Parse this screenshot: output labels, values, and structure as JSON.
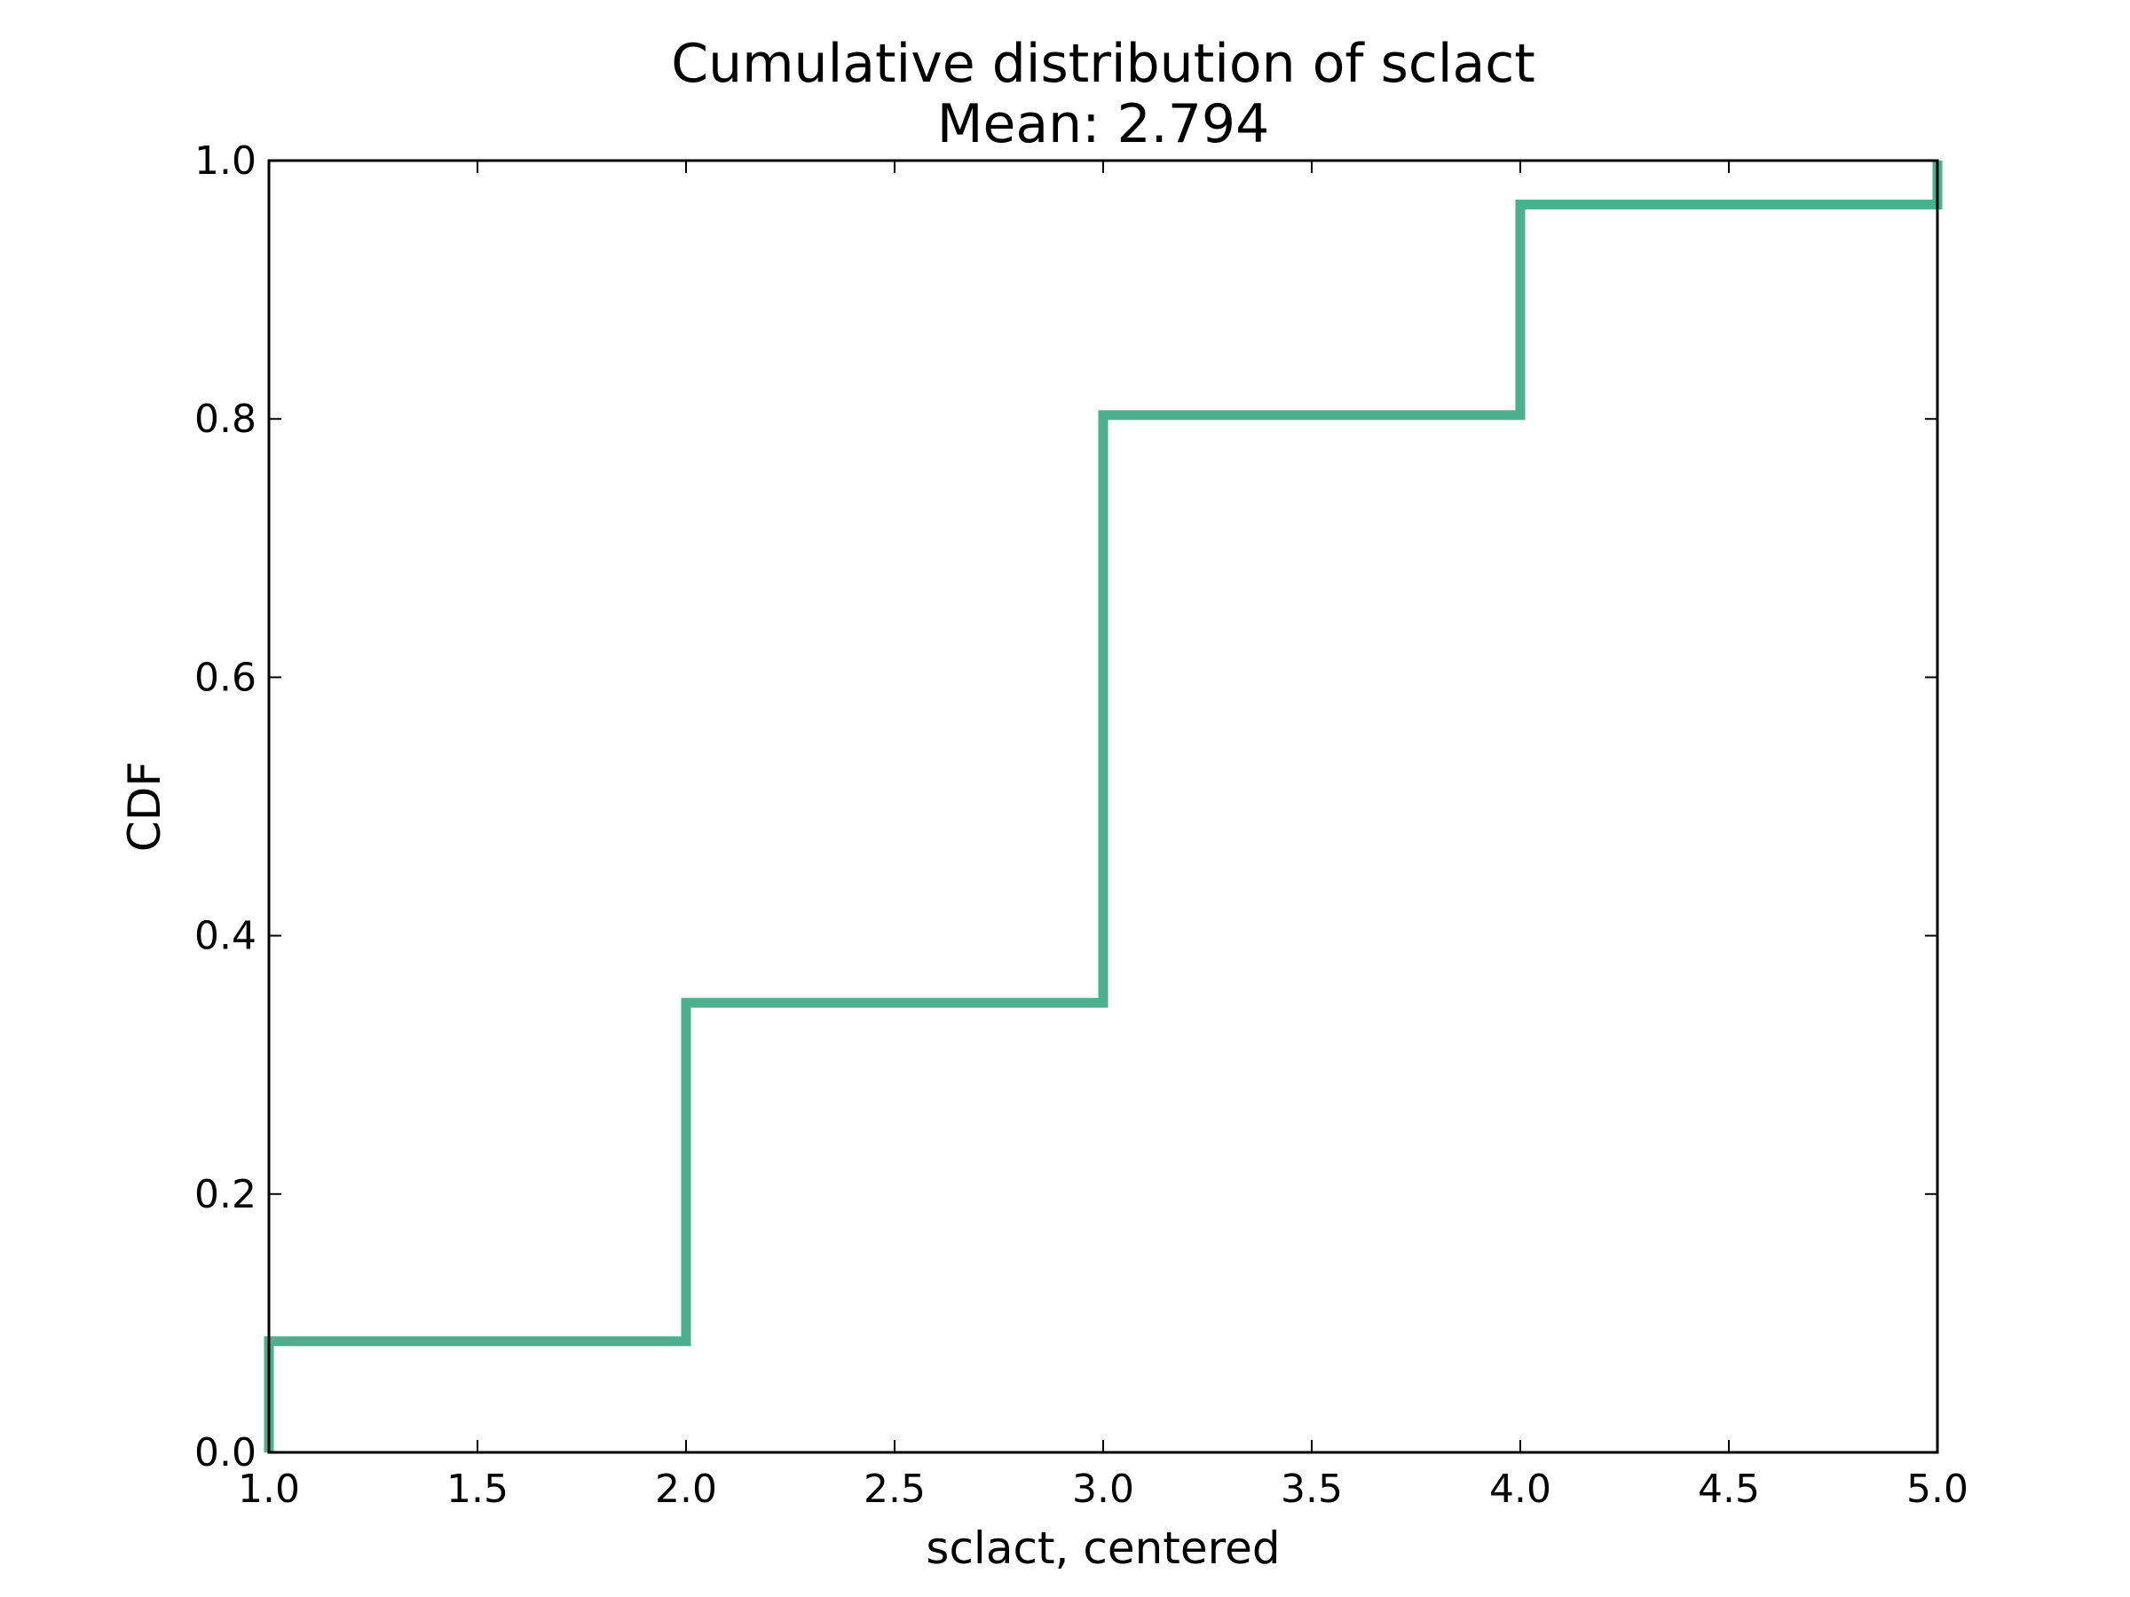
{
  "chart_data": {
    "type": "line",
    "drawstyle": "steps-post",
    "title": "Cumulative distribution of sclact",
    "subtitle": "Mean: 2.794",
    "xlabel": "sclact, centered",
    "ylabel": "CDF",
    "xlim": [
      1.0,
      5.0
    ],
    "ylim": [
      0.0,
      1.0
    ],
    "xticks": [
      "1.0",
      "1.5",
      "2.0",
      "2.5",
      "3.0",
      "3.5",
      "4.0",
      "4.5",
      "5.0"
    ],
    "yticks": [
      "0.0",
      "0.2",
      "0.4",
      "0.6",
      "0.8",
      "1.0"
    ],
    "grid": false,
    "series": [
      {
        "color": "#4daf8e",
        "x": [
          1.0,
          2.0,
          3.0,
          4.0,
          5.0
        ],
        "y": [
          0.086,
          0.348,
          0.803,
          0.966,
          1.0
        ]
      }
    ]
  }
}
